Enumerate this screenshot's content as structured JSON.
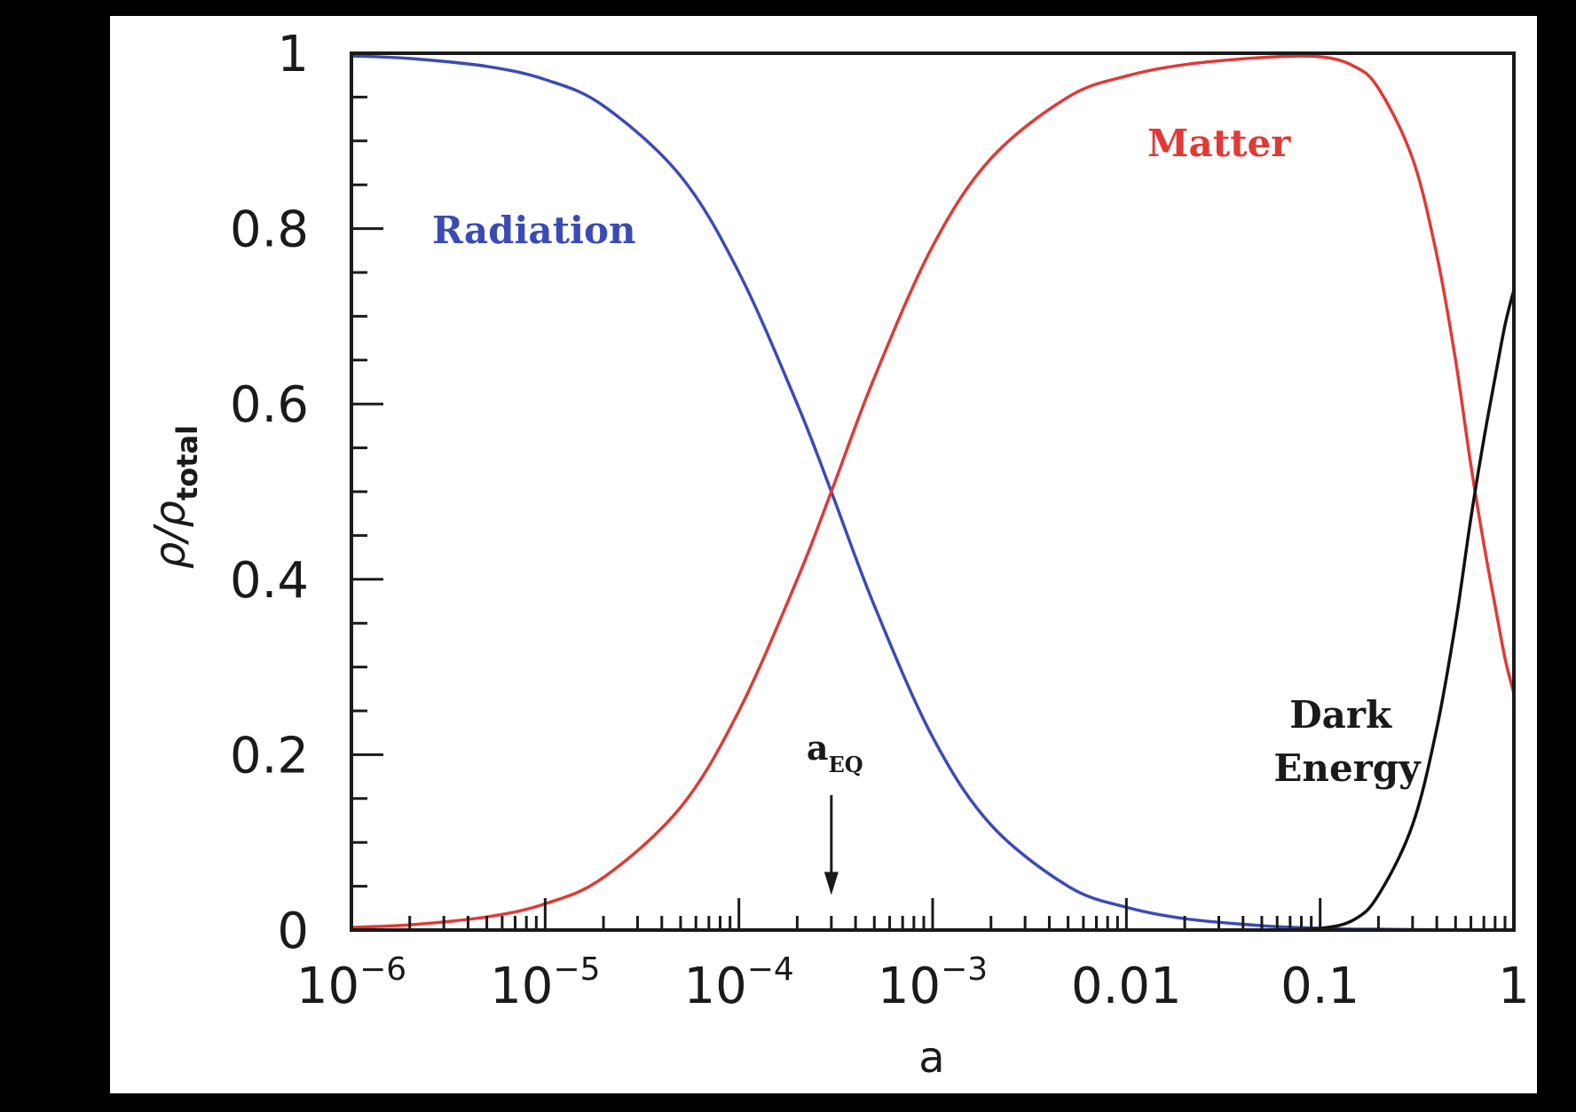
{
  "chart_data": {
    "type": "line",
    "title": "",
    "xlabel": "a",
    "ylabel_base": "ρ/ρ",
    "ylabel_sub": "total",
    "xscale": "log",
    "xlim": [
      1e-06,
      1
    ],
    "ylim": [
      0,
      1
    ],
    "x_ticks": [
      {
        "value": 1e-06,
        "base": "10",
        "exp": "−6"
      },
      {
        "value": 1e-05,
        "base": "10",
        "exp": "−5"
      },
      {
        "value": 0.0001,
        "base": "10",
        "exp": "−4"
      },
      {
        "value": 0.001,
        "base": "10",
        "exp": "−3"
      },
      {
        "value": 0.01,
        "base": "0.01",
        "exp": ""
      },
      {
        "value": 0.1,
        "base": "0.1",
        "exp": ""
      },
      {
        "value": 1,
        "base": "1",
        "exp": ""
      }
    ],
    "y_ticks": [
      {
        "value": 0,
        "label": "0"
      },
      {
        "value": 0.2,
        "label": "0.2"
      },
      {
        "value": 0.4,
        "label": "0.4"
      },
      {
        "value": 0.6,
        "label": "0.6"
      },
      {
        "value": 0.8,
        "label": "0.8"
      },
      {
        "value": 1,
        "label": "1"
      }
    ],
    "grid": false,
    "legend": "none",
    "x": [
      1e-06,
      2e-06,
      5e-06,
      1e-05,
      2e-05,
      5e-05,
      0.0001,
      0.0002,
      0.0003,
      0.0005,
      0.001,
      0.002,
      0.005,
      0.01,
      0.02,
      0.05,
      0.1,
      0.15,
      0.2,
      0.3,
      0.4,
      0.5,
      0.6,
      0.7,
      0.8,
      0.9,
      1
    ],
    "series": [
      {
        "name": "Radiation",
        "color": "#3b4bb5",
        "values": [
          0.997,
          0.994,
          0.985,
          0.97,
          0.94,
          0.86,
          0.75,
          0.6,
          0.5,
          0.37,
          0.22,
          0.12,
          0.05,
          0.026,
          0.013,
          0.005,
          0.002,
          0.001,
          0.001,
          0.0005,
          0.0003,
          0.0002,
          0.0001,
          0.0001,
          0.0,
          0.0,
          0.0
        ]
      },
      {
        "name": "Matter",
        "color": "#e03a36",
        "values": [
          0.003,
          0.006,
          0.015,
          0.03,
          0.06,
          0.14,
          0.25,
          0.4,
          0.5,
          0.63,
          0.78,
          0.88,
          0.95,
          0.974,
          0.987,
          0.995,
          0.996,
          0.985,
          0.96,
          0.88,
          0.77,
          0.65,
          0.53,
          0.44,
          0.37,
          0.31,
          0.27
        ]
      },
      {
        "name": "Dark Energy",
        "label_lines": [
          "Dark",
          "Energy"
        ],
        "color": "#111111",
        "values": [
          0,
          0,
          0,
          0,
          0,
          0,
          0,
          0,
          0,
          0,
          0,
          0,
          0,
          0,
          0,
          0,
          0.002,
          0.012,
          0.04,
          0.12,
          0.23,
          0.35,
          0.47,
          0.56,
          0.63,
          0.69,
          0.73
        ]
      }
    ],
    "annotations": [
      {
        "text_base": "a",
        "text_sub": "EQ",
        "x": 0.0003,
        "arrow_to_y": 0.04
      }
    ]
  }
}
